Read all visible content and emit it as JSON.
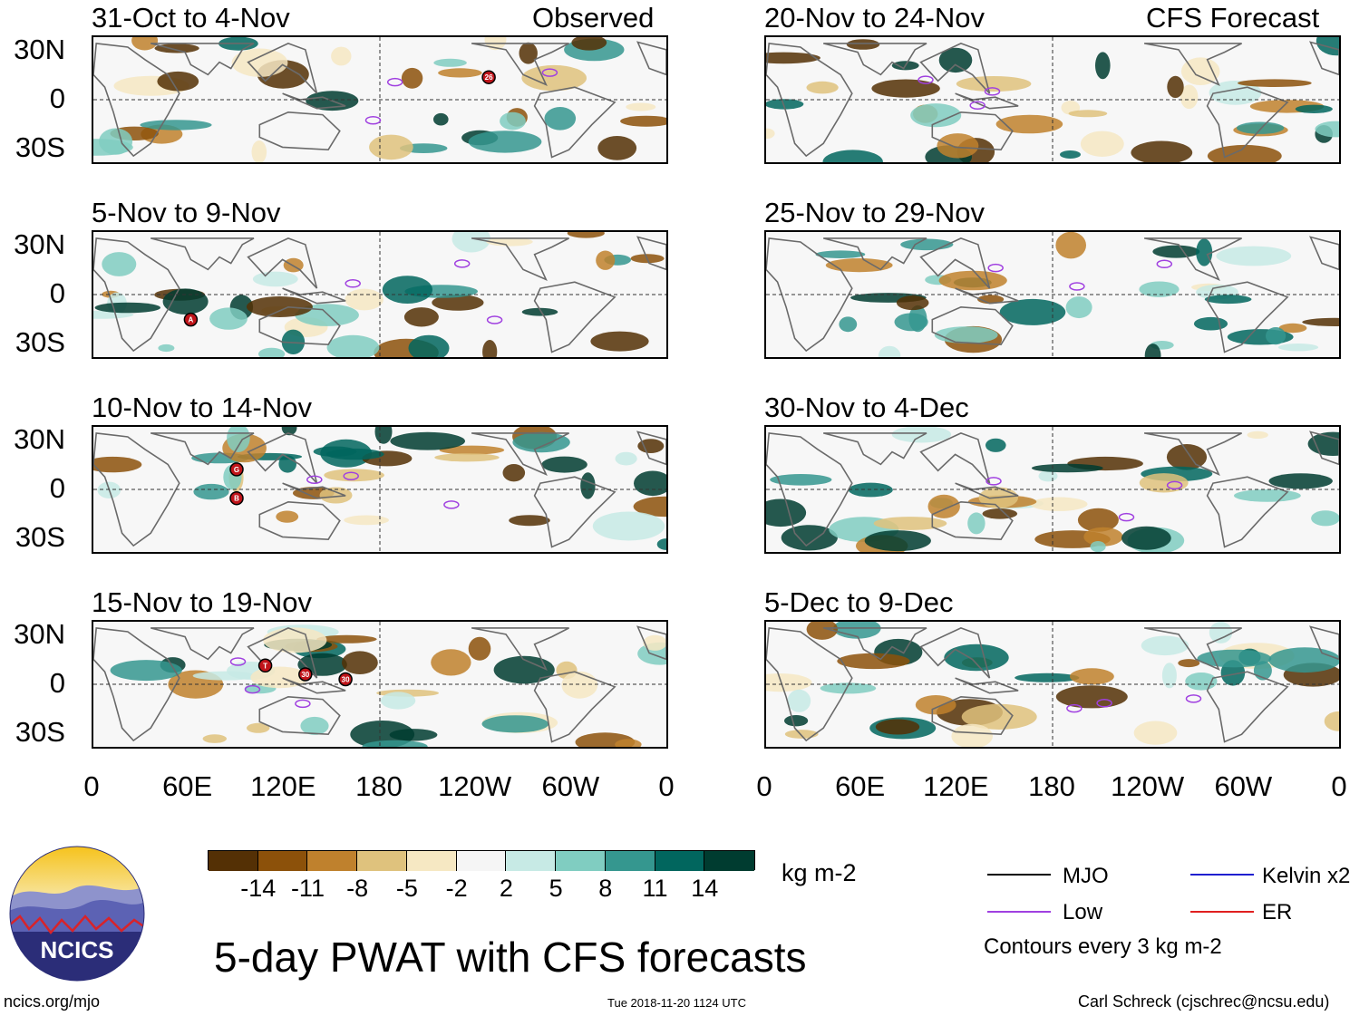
{
  "observed_label": "Observed",
  "forecast_label": "CFS Forecast",
  "panels_left": [
    {
      "title": "31-Oct to 4-Nov"
    },
    {
      "title": "5-Nov to 9-Nov"
    },
    {
      "title": "10-Nov to 14-Nov"
    },
    {
      "title": "15-Nov to 19-Nov"
    }
  ],
  "panels_right": [
    {
      "title": "20-Nov to 24-Nov"
    },
    {
      "title": "25-Nov to 29-Nov"
    },
    {
      "title": "30-Nov to 4-Dec"
    },
    {
      "title": "5-Dec to 9-Dec"
    }
  ],
  "y_axis_labels": [
    "30N",
    "0",
    "30S"
  ],
  "x_axis_labels": [
    "0",
    "60E",
    "120E",
    "180",
    "120W",
    "60W",
    "0"
  ],
  "colorbar": {
    "colors": [
      "#543005",
      "#8c510a",
      "#bf812d",
      "#dfc27d",
      "#f6e8c3",
      "#f5f5f5",
      "#c7eae5",
      "#80cdc1",
      "#35978f",
      "#01665e",
      "#003c30"
    ],
    "ticks": [
      "-14",
      "-11",
      "-8",
      "-5",
      "-2",
      "2",
      "5",
      "8",
      "11",
      "14"
    ],
    "units": "kg m-2"
  },
  "legend": {
    "items": [
      {
        "label": "MJO",
        "color": "#000000"
      },
      {
        "label": "Kelvin x2",
        "color": "#1f1fd0"
      },
      {
        "label": "Low",
        "color": "#a040e0"
      },
      {
        "label": "ER",
        "color": "#e02020"
      }
    ],
    "note": "Contours every 3 kg m-2"
  },
  "storm_markers": [
    {
      "panel": 0,
      "label": "26"
    },
    {
      "panel": 1,
      "label": "A"
    },
    {
      "panel": 2,
      "label": "G"
    },
    {
      "panel": 2,
      "label": "B"
    },
    {
      "panel": 3,
      "label": "T"
    },
    {
      "panel": 3,
      "label": "30"
    },
    {
      "panel": 3,
      "label": "30"
    }
  ],
  "main_title": "5-day PWAT with CFS forecasts",
  "logo_text": "NCICS",
  "url": "ncics.org/mjo",
  "timestamp": "Tue 2018-11-20 1124 UTC",
  "credit": "Carl Schreck (cjschrec@ncsu.edu)"
}
